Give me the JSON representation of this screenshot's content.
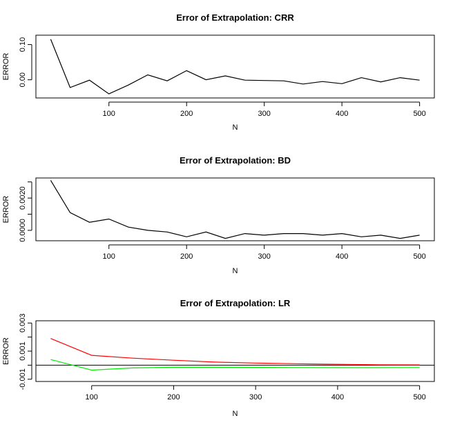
{
  "chart_data": [
    {
      "type": "line",
      "title": "Error of Extrapolation: CRR",
      "xlabel": "N",
      "ylabel": "ERROR",
      "x_ticks": [
        100,
        200,
        300,
        400,
        500
      ],
      "y_ticks": [
        0.0,
        0.1
      ],
      "y_tick_labels": [
        "0.00",
        "0.10"
      ],
      "xlim": [
        25,
        500
      ],
      "ylim": [
        -0.045,
        0.12
      ],
      "series": [
        {
          "color": "#000000",
          "x": [
            25,
            50,
            75,
            100,
            125,
            150,
            175,
            200,
            225,
            250,
            275,
            300,
            325,
            350,
            375,
            400,
            425,
            450,
            475,
            500
          ],
          "y": [
            0.115,
            -0.022,
            -0.001,
            -0.04,
            -0.015,
            0.014,
            -0.003,
            0.026,
            0.0,
            0.011,
            -0.001,
            -0.002,
            -0.003,
            -0.012,
            -0.005,
            -0.011,
            0.006,
            -0.006,
            0.006,
            -0.001
          ]
        }
      ]
    },
    {
      "type": "line",
      "title": "Error of Extrapolation: BD",
      "xlabel": "N",
      "ylabel": "ERROR",
      "x_ticks": [
        100,
        200,
        300,
        400,
        500
      ],
      "y_ticks": [
        0.0,
        0.001,
        0.002,
        0.003
      ],
      "y_tick_labels": [
        "0.0000",
        "",
        "0.0020",
        ""
      ],
      "xlim": [
        25,
        500
      ],
      "ylim": [
        -0.0005,
        0.0031
      ],
      "series": [
        {
          "color": "#000000",
          "x": [
            25,
            50,
            75,
            100,
            125,
            150,
            175,
            200,
            225,
            250,
            275,
            300,
            325,
            350,
            375,
            400,
            425,
            450,
            475,
            500
          ],
          "y": [
            0.0031,
            0.0011,
            0.0005,
            0.0007,
            0.0002,
            0.0,
            -0.0001,
            -0.0004,
            -0.0001,
            -0.0005,
            -0.0002,
            -0.0003,
            -0.0002,
            -0.0002,
            -0.0003,
            -0.0002,
            -0.0004,
            -0.0003,
            -0.0005,
            -0.0003
          ]
        }
      ]
    },
    {
      "type": "line",
      "title": "Error of Extrapolation: LR",
      "xlabel": "N",
      "ylabel": "ERROR",
      "x_ticks": [
        100,
        200,
        300,
        400,
        500
      ],
      "y_ticks": [
        -0.001,
        0.0,
        0.001,
        0.002,
        0.003
      ],
      "y_tick_labels": [
        "-0.001",
        "",
        "0.001",
        "",
        "0.003"
      ],
      "xlim": [
        50,
        500
      ],
      "ylim": [
        -0.001,
        0.003
      ],
      "hline": 0,
      "series": [
        {
          "color": "#ff0000",
          "x": [
            50,
            100,
            150,
            200,
            250,
            300,
            350,
            400,
            450,
            500
          ],
          "y": [
            0.0019,
            0.0007,
            0.0005,
            0.00035,
            0.00022,
            0.00015,
            0.0001,
            6e-05,
            3e-05,
            2e-05
          ]
        },
        {
          "color": "#00ee00",
          "x": [
            50,
            100,
            150,
            200,
            250,
            300,
            350,
            400,
            450,
            500
          ],
          "y": [
            0.0004,
            -0.00035,
            -0.0002,
            -0.00015,
            -0.00015,
            -0.00016,
            -0.00017,
            -0.00018,
            -0.00018,
            -0.00017
          ]
        }
      ]
    }
  ]
}
